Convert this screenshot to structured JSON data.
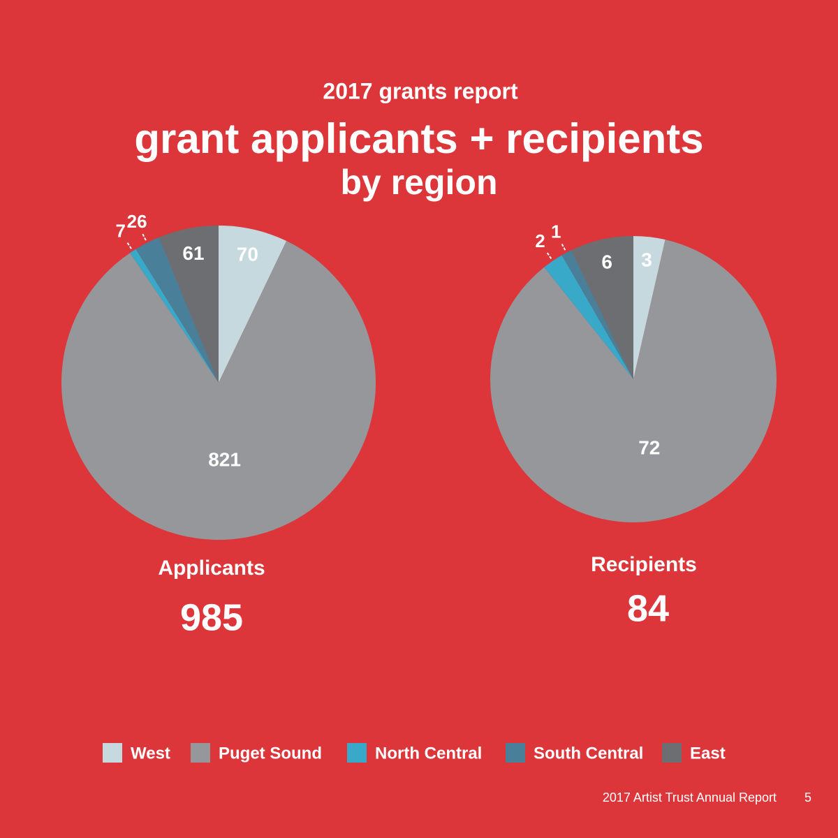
{
  "header": {
    "kicker": "2017 grants report",
    "title": "grant applicants + recipients",
    "subtitle": "by region"
  },
  "chart_data": [
    {
      "type": "pie",
      "title": "Applicants",
      "total": 985,
      "categories": [
        "West",
        "Puget Sound",
        "North Central",
        "South Central",
        "East"
      ],
      "values": [
        70,
        821,
        7,
        26,
        61
      ],
      "colors": [
        "#c5d9df",
        "#96979b",
        "#38a9c9",
        "#4a7f99",
        "#6d6e72"
      ]
    },
    {
      "type": "pie",
      "title": "Recipients",
      "total": 84,
      "categories": [
        "West",
        "Puget Sound",
        "North Central",
        "South Central",
        "East"
      ],
      "values": [
        3,
        72,
        2,
        1,
        6
      ],
      "colors": [
        "#c5d9df",
        "#96979b",
        "#38a9c9",
        "#4a7f99",
        "#6d6e72"
      ]
    }
  ],
  "footer": {
    "text": "2017 Artist Trust Annual Report",
    "page": 5
  }
}
